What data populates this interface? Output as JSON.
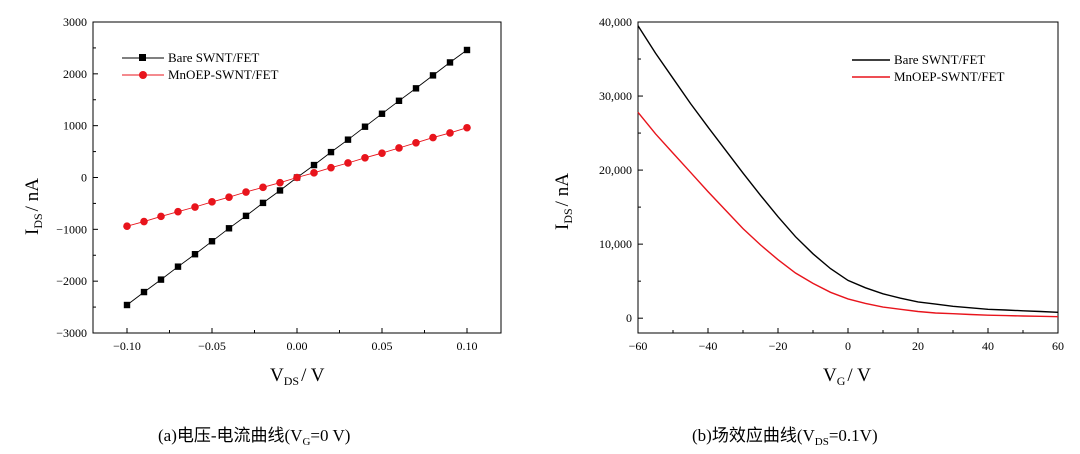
{
  "chart_data": [
    {
      "type": "line",
      "panel": "a",
      "xlabel_main": "V",
      "xlabel_sub": "DS",
      "xlabel_unit": "/ V",
      "ylabel_main": "I",
      "ylabel_sub": "DS",
      "ylabel_unit": "/ nA",
      "xlim": [
        -0.12,
        0.12
      ],
      "ylim": [
        -3000,
        3000
      ],
      "xticks": [
        -0.1,
        -0.05,
        0.0,
        0.05,
        0.1
      ],
      "xtick_labels": [
        "−0.10",
        "−0.05",
        "0.00",
        "0.05",
        "0.10"
      ],
      "yticks": [
        -3000,
        -2000,
        -1000,
        0,
        1000,
        2000,
        3000
      ],
      "ytick_labels": [
        "−3000",
        "−2000",
        "−1000",
        "0",
        "1000",
        "2000",
        "3000"
      ],
      "legend_position": "top-left",
      "caption_prefix": "(a)电压-电流曲线(V",
      "caption_sub": "G",
      "caption_suffix": "=0 V)",
      "series": [
        {
          "name": "Bare SWNT/FET",
          "color": "#000000",
          "marker": "square",
          "x": [
            -0.1,
            -0.09,
            -0.08,
            -0.07,
            -0.06,
            -0.05,
            -0.04,
            -0.03,
            -0.02,
            -0.01,
            0.0,
            0.01,
            0.02,
            0.03,
            0.04,
            0.05,
            0.06,
            0.07,
            0.08,
            0.09,
            0.1
          ],
          "y": [
            -2460,
            -2210,
            -1970,
            -1720,
            -1480,
            -1230,
            -980,
            -740,
            -490,
            -250,
            0,
            240,
            490,
            730,
            980,
            1230,
            1480,
            1720,
            1970,
            2220,
            2460
          ]
        },
        {
          "name": "MnOEP-SWNT/FET",
          "color": "#e8141c",
          "marker": "circle",
          "x": [
            -0.1,
            -0.09,
            -0.08,
            -0.07,
            -0.06,
            -0.05,
            -0.04,
            -0.03,
            -0.02,
            -0.01,
            0.0,
            0.01,
            0.02,
            0.03,
            0.04,
            0.05,
            0.06,
            0.07,
            0.08,
            0.09,
            0.1
          ],
          "y": [
            -940,
            -850,
            -750,
            -660,
            -570,
            -470,
            -380,
            -280,
            -190,
            -100,
            0,
            90,
            190,
            280,
            380,
            470,
            570,
            670,
            770,
            860,
            960
          ]
        }
      ]
    },
    {
      "type": "line",
      "panel": "b",
      "xlabel_main": "V",
      "xlabel_sub": "G",
      "xlabel_unit": "/ V",
      "ylabel_main": "I",
      "ylabel_sub": "DS",
      "ylabel_unit": "/ nA",
      "xlim": [
        -60,
        60
      ],
      "ylim": [
        -2000,
        40000
      ],
      "xticks": [
        -60,
        -40,
        -20,
        0,
        20,
        40,
        60
      ],
      "xtick_labels": [
        "−60",
        "−40",
        "−20",
        "0",
        "20",
        "40",
        "60"
      ],
      "yticks": [
        0,
        10000,
        20000,
        30000,
        40000
      ],
      "ytick_labels": [
        "0",
        "10,000",
        "20,000",
        "30,000",
        "40,000"
      ],
      "legend_position": "top-right",
      "caption_prefix": "(b)场效应曲线(V",
      "caption_sub": "DS",
      "caption_suffix": "=0.1V)",
      "series": [
        {
          "name": "Bare SWNT/FET",
          "color": "#000000",
          "x": [
            -60,
            -55,
            -50,
            -45,
            -40,
            -35,
            -30,
            -25,
            -20,
            -15,
            -10,
            -5,
            0,
            5,
            10,
            15,
            20,
            25,
            30,
            35,
            40,
            45,
            50,
            55,
            60
          ],
          "y": [
            39500,
            35800,
            32400,
            29000,
            25800,
            22700,
            19600,
            16600,
            13700,
            11000,
            8700,
            6700,
            5100,
            4100,
            3300,
            2700,
            2200,
            1900,
            1600,
            1400,
            1200,
            1100,
            1000,
            900,
            800
          ]
        },
        {
          "name": "MnOEP-SWNT/FET",
          "color": "#e8141c",
          "x": [
            -60,
            -55,
            -50,
            -45,
            -40,
            -35,
            -30,
            -25,
            -20,
            -15,
            -10,
            -5,
            0,
            5,
            10,
            15,
            20,
            25,
            30,
            35,
            40,
            45,
            50,
            55,
            60
          ],
          "y": [
            27800,
            24900,
            22300,
            19700,
            17100,
            14600,
            12100,
            9900,
            7900,
            6100,
            4700,
            3500,
            2600,
            2000,
            1500,
            1200,
            900,
            700,
            600,
            500,
            400,
            350,
            300,
            250,
            200
          ]
        }
      ]
    }
  ]
}
